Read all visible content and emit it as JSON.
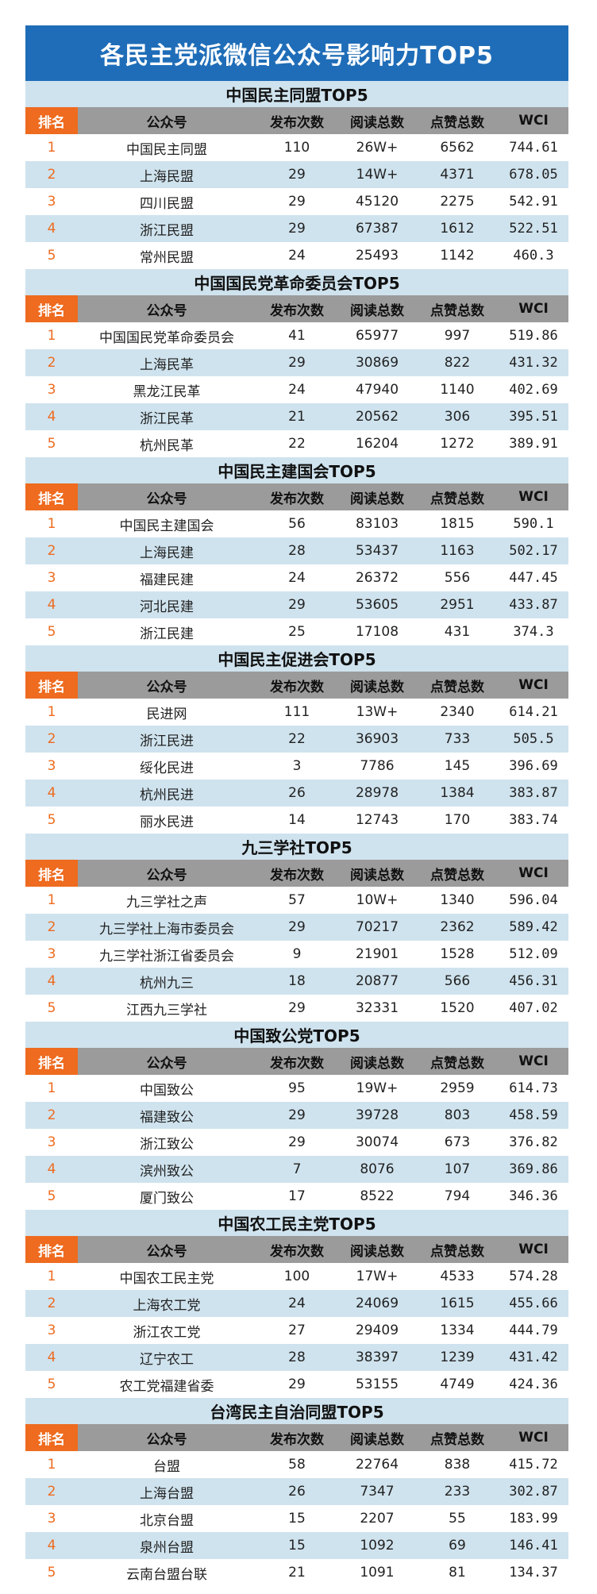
{
  "title": "各民主党派微信公众号影响力TOP5",
  "headers": [
    "排名",
    "公众号",
    "发布次数",
    "阅读总数",
    "点赞总数",
    "WCI"
  ],
  "sections": [
    {
      "name": "中国民主同盟TOP5",
      "rows": [
        [
          "1",
          "中国民主同盟",
          "110",
          "26W+",
          "6562",
          "744.61"
        ],
        [
          "2",
          "上海民盟",
          "29",
          "14W+",
          "4371",
          "678.05"
        ],
        [
          "3",
          "四川民盟",
          "29",
          "45120",
          "2275",
          "542.91"
        ],
        [
          "4",
          "浙江民盟",
          "29",
          "67387",
          "1612",
          "522.51"
        ],
        [
          "5",
          "常州民盟",
          "24",
          "25493",
          "1142",
          "460.3"
        ]
      ]
    },
    {
      "name": "中国国民党革命委员会TOP5",
      "rows": [
        [
          "1",
          "中国国民党革命委员会",
          "41",
          "65977",
          "997",
          "519.86"
        ],
        [
          "2",
          "上海民革",
          "29",
          "30869",
          "822",
          "431.32"
        ],
        [
          "3",
          "黑龙江民革",
          "24",
          "47940",
          "1140",
          "402.69"
        ],
        [
          "4",
          "浙江民革",
          "21",
          "20562",
          "306",
          "395.51"
        ],
        [
          "5",
          "杭州民革",
          "22",
          "16204",
          "1272",
          "389.91"
        ]
      ]
    },
    {
      "name": "中国民主建国会TOP5",
      "rows": [
        [
          "1",
          "中国民主建国会",
          "56",
          "83103",
          "1815",
          "590.1"
        ],
        [
          "2",
          "上海民建",
          "28",
          "53437",
          "1163",
          "502.17"
        ],
        [
          "3",
          "福建民建",
          "24",
          "26372",
          "556",
          "447.45"
        ],
        [
          "4",
          "河北民建",
          "29",
          "53605",
          "2951",
          "433.87"
        ],
        [
          "5",
          "浙江民建",
          "25",
          "17108",
          "431",
          "374.3"
        ]
      ]
    },
    {
      "name": "中国民主促进会TOP5",
      "rows": [
        [
          "1",
          "民进网",
          "111",
          "13W+",
          "2340",
          "614.21"
        ],
        [
          "2",
          "浙江民进",
          "22",
          "36903",
          "733",
          "505.5"
        ],
        [
          "3",
          "绥化民进",
          "3",
          "7786",
          "145",
          "396.69"
        ],
        [
          "4",
          "杭州民进",
          "26",
          "28978",
          "1384",
          "383.87"
        ],
        [
          "5",
          "丽水民进",
          "14",
          "12743",
          "170",
          "383.74"
        ]
      ]
    },
    {
      "name": "九三学社TOP5",
      "rows": [
        [
          "1",
          "九三学社之声",
          "57",
          "10W+",
          "1340",
          "596.04"
        ],
        [
          "2",
          "九三学社上海市委员会",
          "29",
          "70217",
          "2362",
          "589.42"
        ],
        [
          "3",
          "九三学社浙江省委员会",
          "9",
          "21901",
          "1528",
          "512.09"
        ],
        [
          "4",
          "杭州九三",
          "18",
          "20877",
          "566",
          "456.31"
        ],
        [
          "5",
          "江西九三学社",
          "29",
          "32331",
          "1520",
          "407.02"
        ]
      ]
    },
    {
      "name": "中国致公党TOP5",
      "rows": [
        [
          "1",
          "中国致公",
          "95",
          "19W+",
          "2959",
          "614.73"
        ],
        [
          "2",
          "福建致公",
          "29",
          "39728",
          "803",
          "458.59"
        ],
        [
          "3",
          "浙江致公",
          "29",
          "30074",
          "673",
          "376.82"
        ],
        [
          "4",
          "滨州致公",
          "7",
          "8076",
          "107",
          "369.86"
        ],
        [
          "5",
          "厦门致公",
          "17",
          "8522",
          "794",
          "346.36"
        ]
      ]
    },
    {
      "name": "中国农工民主党TOP5",
      "rows": [
        [
          "1",
          "中国农工民主党",
          "100",
          "17W+",
          "4533",
          "574.28"
        ],
        [
          "2",
          "上海农工党",
          "24",
          "24069",
          "1615",
          "455.66"
        ],
        [
          "3",
          "浙江农工党",
          "27",
          "29409",
          "1334",
          "444.79"
        ],
        [
          "4",
          "辽宁农工",
          "28",
          "38397",
          "1239",
          "431.42"
        ],
        [
          "5",
          "农工党福建省委",
          "29",
          "53155",
          "4749",
          "424.36"
        ]
      ]
    },
    {
      "name": "台湾民主自治同盟TOP5",
      "rows": [
        [
          "1",
          "台盟",
          "58",
          "22764",
          "838",
          "415.72"
        ],
        [
          "2",
          "上海台盟",
          "26",
          "7347",
          "233",
          "302.87"
        ],
        [
          "3",
          "北京台盟",
          "15",
          "2207",
          "55",
          "183.99"
        ],
        [
          "4",
          "泉州台盟",
          "15",
          "1092",
          "69",
          "146.41"
        ],
        [
          "5",
          "云南台盟台联",
          "21",
          "1091",
          "81",
          "134.37"
        ]
      ]
    }
  ]
}
